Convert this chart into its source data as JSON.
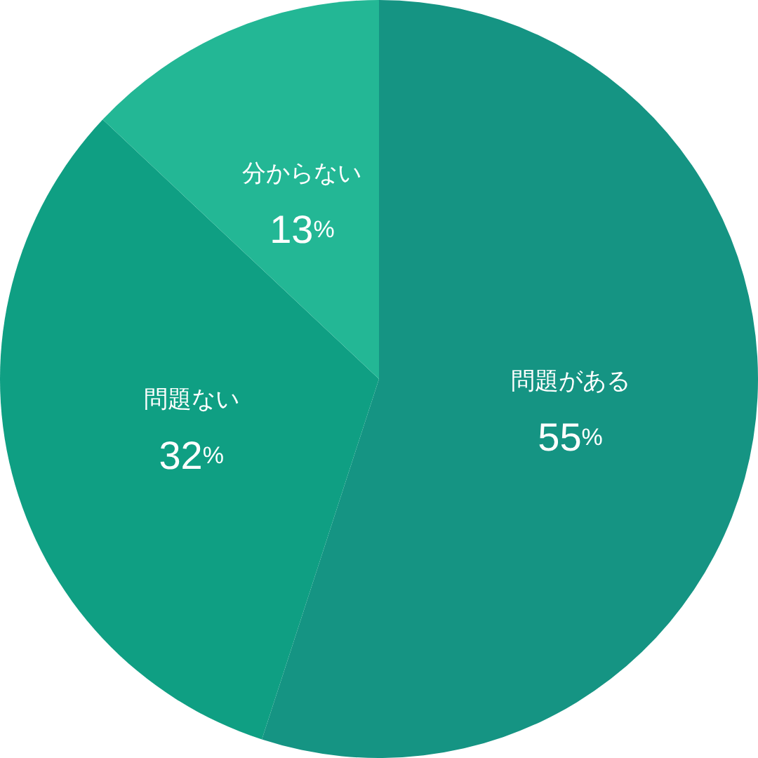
{
  "chart_data": {
    "type": "pie",
    "categories": [
      "問題がある",
      "問題ない",
      "分からない"
    ],
    "values": [
      55,
      32,
      13
    ],
    "colors": [
      "#159483",
      "#0f9f83",
      "#23b795"
    ],
    "value_labels": [
      "55%",
      "32%",
      "13%"
    ]
  }
}
